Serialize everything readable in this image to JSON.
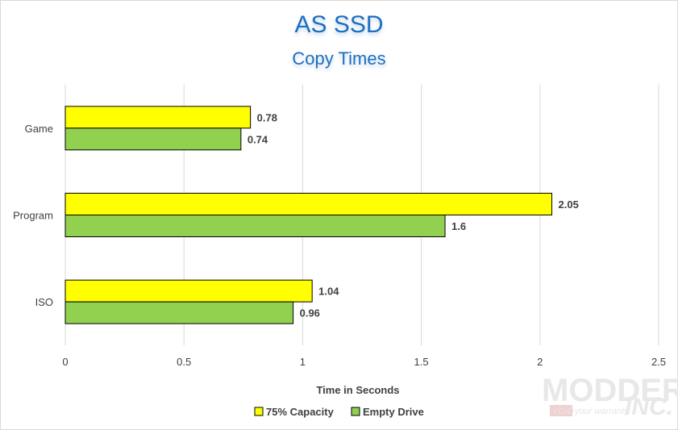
{
  "chart_data": {
    "type": "bar",
    "orientation": "horizontal",
    "title": "AS SSD",
    "subtitle": "Copy Times",
    "categories": [
      "Game",
      "Program",
      "ISO"
    ],
    "series": [
      {
        "name": "75% Capacity",
        "values": [
          0.78,
          2.05,
          1.04
        ],
        "color": "#ffff00"
      },
      {
        "name": "Empty Drive",
        "values": [
          0.74,
          1.6,
          0.96
        ],
        "color": "#92d050"
      }
    ],
    "xlabel": "Time in Seconds",
    "ylabel": "",
    "xlim": [
      0,
      2.5
    ],
    "xticks": [
      "0",
      "0.5",
      "1",
      "1.5",
      "2",
      "2.5"
    ],
    "grid": true,
    "legend_position": "bottom"
  },
  "watermark": {
    "brand": "MODDERS",
    "suffix": "INC.",
    "tagline_badge": "VOID",
    "tagline": "your warranty"
  },
  "colors": {
    "title": "#1f6fbf",
    "bar_outline": "#000000",
    "grid": "#d9d9d9"
  }
}
